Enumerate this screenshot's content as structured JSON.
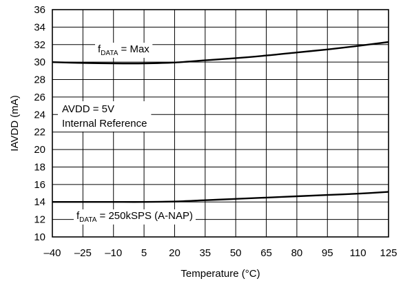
{
  "chart_data": {
    "type": "line",
    "xlabel": "Temperature (°C)",
    "ylabel": "IAVDD (mA)",
    "xlim": [
      -40,
      125
    ],
    "ylim": [
      10,
      36
    ],
    "x_ticks": [
      "–40",
      "–25",
      "–10",
      "5",
      "20",
      "35",
      "50",
      "65",
      "80",
      "95",
      "110",
      "125"
    ],
    "y_ticks": [
      "10",
      "12",
      "14",
      "16",
      "18",
      "20",
      "22",
      "24",
      "26",
      "28",
      "30",
      "32",
      "34",
      "36"
    ],
    "grid": true,
    "series": [
      {
        "name_main": "f",
        "name_sub": "DATA",
        "name_rest": " = Max",
        "x": [
          -40,
          -25,
          -10,
          5,
          20,
          35,
          50,
          65,
          80,
          95,
          110,
          125
        ],
        "y": [
          30.0,
          29.9,
          29.85,
          29.85,
          29.95,
          30.2,
          30.45,
          30.75,
          31.1,
          31.45,
          31.85,
          32.3
        ]
      },
      {
        "name_main": "f",
        "name_sub": "DATA",
        "name_rest": " = 250kSPS (A-NAP)",
        "x": [
          -40,
          -25,
          -10,
          5,
          20,
          35,
          50,
          65,
          80,
          95,
          110,
          125
        ],
        "y": [
          14.0,
          14.0,
          14.0,
          14.0,
          14.05,
          14.2,
          14.35,
          14.5,
          14.65,
          14.8,
          14.95,
          15.15
        ]
      }
    ],
    "annotations": [
      "AVDD = 5V",
      "Internal Reference"
    ]
  }
}
